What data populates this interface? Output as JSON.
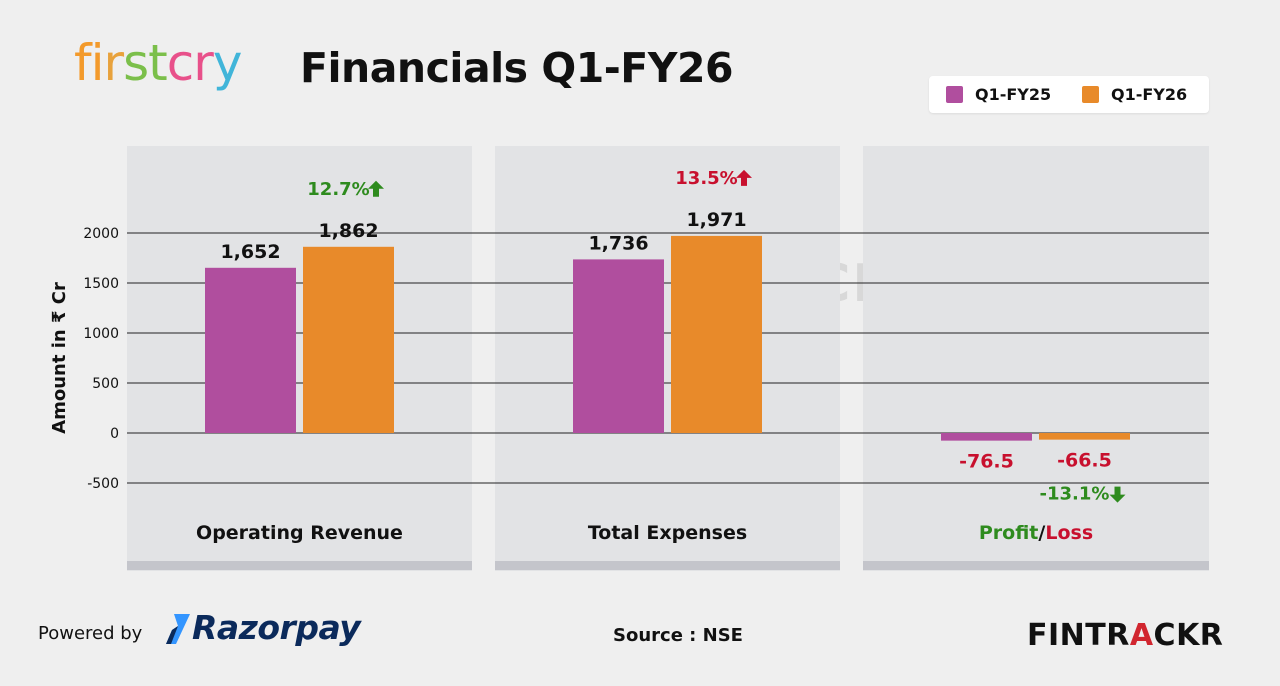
{
  "brand": {
    "logo_text": "firstcry",
    "logo_letters": [
      {
        "ch": "f",
        "color": "#f39a2b"
      },
      {
        "ch": "i",
        "color": "#f39a2b"
      },
      {
        "ch": "r",
        "color": "#e8a23c"
      },
      {
        "ch": "s",
        "color": "#7bbf4a"
      },
      {
        "ch": "t",
        "color": "#7bbf4a"
      },
      {
        "ch": "c",
        "color": "#e8508a"
      },
      {
        "ch": "r",
        "color": "#e8508a"
      },
      {
        "ch": "y",
        "color": "#41b5d9"
      }
    ]
  },
  "title": "Financials Q1-FY26",
  "legend": [
    {
      "label": "Q1-FY25",
      "color": "#b04e9e"
    },
    {
      "label": "Q1-FY26",
      "color": "#e88a2a"
    }
  ],
  "chart_data": {
    "type": "bar",
    "ylabel": "Amount in ₹ Cr",
    "ylim": [
      -600,
      2300
    ],
    "yticks": [
      2000,
      1500,
      1000,
      500,
      0,
      -500
    ],
    "categories": [
      "Operating Revenue",
      "Total Expenses",
      "Profit/Loss"
    ],
    "series": [
      {
        "name": "Q1-FY25",
        "color": "#b04e9e",
        "values": [
          1652,
          1736,
          -76.5
        ]
      },
      {
        "name": "Q1-FY26",
        "color": "#e88a2a",
        "values": [
          1862,
          1971,
          -66.5
        ]
      }
    ],
    "value_labels": [
      [
        "1,652",
        "1,862"
      ],
      [
        "1,736",
        "1,971"
      ],
      [
        "-76.5",
        "-66.5"
      ]
    ],
    "value_label_colors": [
      [
        "#111111",
        "#111111"
      ],
      [
        "#111111",
        "#111111"
      ],
      [
        "#c8102e",
        "#c8102e"
      ]
    ],
    "changes": [
      {
        "text": "12.7%",
        "direction": "up",
        "color": "#2e8b1e"
      },
      {
        "text": "13.5%",
        "direction": "up",
        "color": "#c8102e"
      },
      {
        "text": "-13.1%",
        "direction": "down",
        "color": "#2e8b1e"
      }
    ],
    "profit_loss_label": {
      "profit": "Profit",
      "sep": "/",
      "loss": "Loss",
      "profit_color": "#2e8b1e",
      "loss_color": "#c8102e"
    }
  },
  "footer": {
    "powered_by": "Powered by",
    "razorpay": "Razorpay",
    "source": "Source : NSE",
    "fintrackr_a": "FINTR",
    "fintrackr_b": "A",
    "fintrackr_c": "CKR",
    "watermark": "ACKR"
  }
}
